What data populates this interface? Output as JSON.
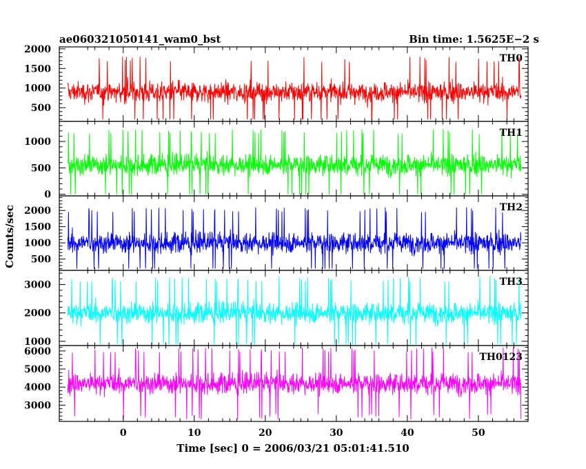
{
  "chart_data": {
    "type": "line",
    "title": "ae060321050141_wam0_bst",
    "subtitle": "Bin time: 1.5625E−2 s",
    "xlabel": "Time [sec] 0 = 2006/03/21 05:01:41.510",
    "ylabel": "Counts/sec",
    "xlim": [
      -9,
      57
    ],
    "x_range": [
      -7.8,
      56
    ],
    "x_ticks": [
      0,
      10,
      20,
      30,
      40,
      50
    ],
    "grid": false,
    "series": [
      {
        "name": "TH0",
        "color": "#ff0000",
        "ylim": [
          150,
          2050
        ],
        "y_ticks": [
          500,
          1000,
          1500,
          2000
        ],
        "mean": 900,
        "range": [
          200,
          2000
        ]
      },
      {
        "name": "TH1",
        "color": "#00ff00",
        "ylim": [
          -30,
          1380
        ],
        "y_ticks": [
          0,
          500,
          1000
        ],
        "mean": 560,
        "range": [
          0,
          1350
        ]
      },
      {
        "name": "TH2",
        "color": "#0000ff",
        "ylim": [
          150,
          2450
        ],
        "y_ticks": [
          500,
          1000,
          1500,
          2000
        ],
        "mean": 1000,
        "range": [
          200,
          2400
        ]
      },
      {
        "name": "TH3",
        "color": "#00ffff",
        "ylim": [
          850,
          3500
        ],
        "y_ticks": [
          1000,
          2000,
          3000
        ],
        "mean": 2000,
        "range": [
          900,
          3450
        ]
      },
      {
        "name": "TH0123",
        "color": "#ff00ff",
        "ylim": [
          2100,
          6300
        ],
        "y_ticks": [
          3000,
          4000,
          5000,
          6000
        ],
        "mean": 4200,
        "range": [
          2200,
          6200
        ]
      }
    ]
  }
}
